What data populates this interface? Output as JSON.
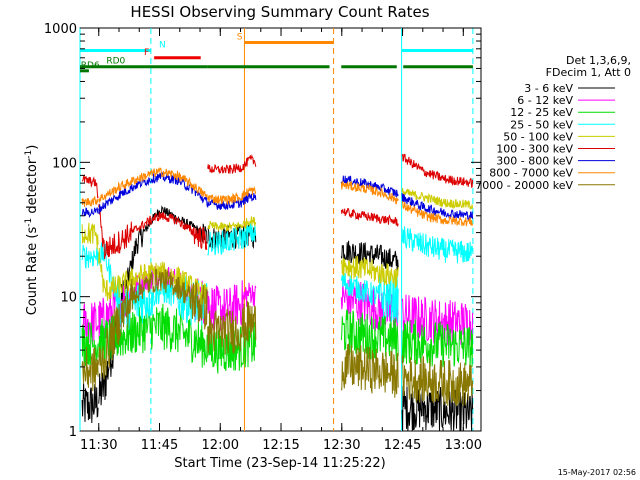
{
  "chart_data": {
    "type": "line",
    "title": "HESSI Observing Summary Count Rates",
    "xlabel": "Start Time (23-Sep-14 11:25:22)",
    "ylabel_main": "Count Rate (s",
    "ylabel_sup1": "-1",
    "ylabel_mid": " detector",
    "ylabel_sup2": "-1",
    "ylabel_end": ")",
    "yscale": "log",
    "ylim": [
      1,
      1000
    ],
    "xlim_minutes": [
      0,
      99
    ],
    "x_tick_labels": [
      "11:30",
      "11:45",
      "12:00",
      "12:15",
      "12:30",
      "12:45",
      "13:00"
    ],
    "x_tick_minutes": [
      4.63,
      19.63,
      34.63,
      49.63,
      64.63,
      79.63,
      94.63
    ],
    "y_tick_labels": [
      "1",
      "10",
      "100",
      "1000"
    ],
    "y_tick_values": [
      1,
      10,
      100,
      1000
    ],
    "legend": {
      "header": [
        "Det 1,3,6,9,",
        "FDecim 1, Att 0"
      ],
      "entries": [
        {
          "label": "3 - 6 keV",
          "color": "#000000"
        },
        {
          "label": "6 - 12 keV",
          "color": "#ff00ff"
        },
        {
          "label": "12 - 25 keV",
          "color": "#00dd00"
        },
        {
          "label": "25 - 50 keV",
          "color": "#00ffff"
        },
        {
          "label": "50 - 100 keV",
          "color": "#cccc00"
        },
        {
          "label": "100 - 300 keV",
          "color": "#dd0000"
        },
        {
          "label": "300 - 800 keV",
          "color": "#0000dd"
        },
        {
          "label": "800 - 7000 keV",
          "color": "#ff8800"
        },
        {
          "label": "7000 - 20000 keV",
          "color": "#887700"
        }
      ]
    },
    "flags": [
      {
        "label": "N",
        "color": "#00ffff",
        "y": 680,
        "segments": [
          [
            0,
            17.5
          ],
          [
            79.5,
            97
          ]
        ],
        "label_at": 19.5
      },
      {
        "label": "F",
        "color": "#ee0000",
        "y": 600,
        "segments": [
          [
            18.3,
            29.8
          ]
        ],
        "label_at": 15.8
      },
      {
        "label": "S",
        "color": "#ff8800",
        "y": 780,
        "segments": [
          [
            40.6,
            62.6
          ]
        ],
        "label_at": 38.7
      },
      {
        "label": "RD0",
        "color": "#007700",
        "y": 515,
        "segments": [
          [
            0,
            31.5
          ],
          [
            31.5,
            61.6
          ],
          [
            64.5,
            78.2
          ],
          [
            79.8,
            97
          ]
        ],
        "label_at": 6.5
      },
      {
        "label": "RD6",
        "color": "#007700",
        "y": 480,
        "segments": [
          [
            0,
            2.2
          ]
        ],
        "label_at": 0.2
      }
    ],
    "vertical_markers": [
      {
        "minute": 0,
        "color": "#00ffff",
        "style": "solid"
      },
      {
        "minute": 17.5,
        "color": "#00ffff",
        "style": "dashed"
      },
      {
        "minute": 40.6,
        "color": "#ff8800",
        "style": "solid"
      },
      {
        "minute": 62.6,
        "color": "#ff8800",
        "style": "dashed"
      },
      {
        "minute": 79.4,
        "color": "#00ffff",
        "style": "solid"
      },
      {
        "minute": 97,
        "color": "#00ffff",
        "style": "dashed"
      }
    ],
    "data_segments_minutes": [
      [
        0.5,
        4.6
      ],
      [
        4.6,
        31.5
      ],
      [
        31.5,
        43.5
      ],
      [
        64.5,
        78.7
      ],
      [
        79.5,
        97
      ]
    ],
    "series": [
      {
        "name": "3 - 6 keV",
        "color": "#000000",
        "points": [
          [
            0.5,
            1.5
          ],
          [
            4,
            1.6
          ],
          [
            6,
            2.2
          ],
          [
            10,
            8
          ],
          [
            14,
            25
          ],
          [
            18,
            38
          ],
          [
            20,
            45
          ],
          [
            24,
            38
          ],
          [
            28,
            33
          ],
          [
            31.5,
            28
          ],
          [
            31.5,
            28
          ],
          [
            34,
            27
          ],
          [
            37,
            28
          ],
          [
            40,
            28
          ],
          [
            42,
            29
          ],
          [
            43.5,
            28
          ],
          [
            64.5,
            23
          ],
          [
            66,
            22
          ],
          [
            70,
            21
          ],
          [
            74,
            20
          ],
          [
            78.7,
            18
          ],
          [
            79.5,
            1.5
          ],
          [
            85,
            1.5
          ],
          [
            90,
            1.4
          ],
          [
            97,
            1.3
          ]
        ]
      },
      {
        "name": "6 - 12 keV",
        "color": "#ff00ff",
        "points": [
          [
            0.5,
            6.2
          ],
          [
            4,
            6.4
          ],
          [
            6,
            6.8
          ],
          [
            10,
            9
          ],
          [
            14,
            12
          ],
          [
            18,
            14
          ],
          [
            20,
            15
          ],
          [
            24,
            13
          ],
          [
            28,
            10
          ],
          [
            31.5,
            9
          ],
          [
            31.5,
            9
          ],
          [
            34,
            8
          ],
          [
            37,
            8
          ],
          [
            40,
            9
          ],
          [
            42,
            11
          ],
          [
            43.5,
            10
          ],
          [
            64.5,
            10
          ],
          [
            66,
            9.5
          ],
          [
            70,
            9
          ],
          [
            74,
            8
          ],
          [
            78.7,
            7.5
          ],
          [
            79.5,
            7.2
          ],
          [
            85,
            6.8
          ],
          [
            90,
            6.5
          ],
          [
            97,
            6.3
          ]
        ]
      },
      {
        "name": "12 - 25 keV",
        "color": "#00dd00",
        "points": [
          [
            0.5,
            4.5
          ],
          [
            4,
            4.5
          ],
          [
            6,
            4.7
          ],
          [
            10,
            5
          ],
          [
            14,
            5.5
          ],
          [
            18,
            6
          ],
          [
            20,
            6
          ],
          [
            24,
            5.5
          ],
          [
            28,
            4.8
          ],
          [
            31.5,
            4.2
          ],
          [
            31.5,
            4.2
          ],
          [
            34,
            4
          ],
          [
            37,
            4
          ],
          [
            40,
            4.2
          ],
          [
            42,
            4.5
          ],
          [
            43.5,
            4.3
          ],
          [
            64.5,
            5.5
          ],
          [
            66,
            5.5
          ],
          [
            70,
            5.2
          ],
          [
            74,
            5
          ],
          [
            78.7,
            4.8
          ],
          [
            79.5,
            4.7
          ],
          [
            85,
            4.5
          ],
          [
            90,
            4.4
          ],
          [
            97,
            4.2
          ]
        ]
      },
      {
        "name": "25 - 50 keV",
        "color": "#00ffff",
        "points": [
          [
            0.5,
            20
          ],
          [
            4,
            20
          ],
          [
            6,
            21
          ],
          [
            10,
            8
          ],
          [
            14,
            9
          ],
          [
            18,
            10
          ],
          [
            20,
            11
          ],
          [
            24,
            10
          ],
          [
            28,
            9
          ],
          [
            31.5,
            8.5
          ],
          [
            31.5,
            25
          ],
          [
            34,
            25
          ],
          [
            37,
            26
          ],
          [
            40,
            27
          ],
          [
            42,
            30
          ],
          [
            43.5,
            29
          ],
          [
            64.5,
            13
          ],
          [
            66,
            12.5
          ],
          [
            70,
            11
          ],
          [
            74,
            10
          ],
          [
            78.7,
            9.5
          ],
          [
            79.5,
            28
          ],
          [
            85,
            24
          ],
          [
            90,
            22
          ],
          [
            97,
            21
          ]
        ]
      },
      {
        "name": "50 - 100 keV",
        "color": "#cccc00",
        "points": [
          [
            0.5,
            30
          ],
          [
            4,
            29
          ],
          [
            6,
            11
          ],
          [
            10,
            12
          ],
          [
            14,
            14
          ],
          [
            18,
            15
          ],
          [
            20,
            15
          ],
          [
            24,
            14
          ],
          [
            28,
            11.5
          ],
          [
            31.5,
            10
          ],
          [
            31.5,
            34
          ],
          [
            34,
            33
          ],
          [
            37,
            33
          ],
          [
            40,
            34
          ],
          [
            42,
            37
          ],
          [
            43.5,
            36
          ],
          [
            64.5,
            18
          ],
          [
            66,
            17
          ],
          [
            70,
            16
          ],
          [
            74,
            15
          ],
          [
            78.7,
            14
          ],
          [
            79.5,
            60
          ],
          [
            85,
            55
          ],
          [
            90,
            50
          ],
          [
            97,
            48
          ]
        ]
      },
      {
        "name": "100 - 300 keV",
        "color": "#dd0000",
        "points": [
          [
            0.5,
            75
          ],
          [
            4,
            70
          ],
          [
            6,
            22
          ],
          [
            10,
            26
          ],
          [
            14,
            32
          ],
          [
            18,
            38
          ],
          [
            20,
            40
          ],
          [
            24,
            37
          ],
          [
            28,
            30
          ],
          [
            31.5,
            26
          ],
          [
            31.5,
            90
          ],
          [
            34,
            88
          ],
          [
            37,
            88
          ],
          [
            40,
            92
          ],
          [
            42,
            105
          ],
          [
            43.5,
            100
          ],
          [
            64.5,
            44
          ],
          [
            66,
            42
          ],
          [
            70,
            40
          ],
          [
            74,
            38
          ],
          [
            78.7,
            36
          ],
          [
            79.5,
            110
          ],
          [
            85,
            85
          ],
          [
            90,
            75
          ],
          [
            97,
            70
          ]
        ]
      },
      {
        "name": "300 - 800 keV",
        "color": "#0000dd",
        "points": [
          [
            0.5,
            42
          ],
          [
            4,
            43
          ],
          [
            6,
            48
          ],
          [
            10,
            58
          ],
          [
            14,
            68
          ],
          [
            18,
            76
          ],
          [
            20,
            78
          ],
          [
            24,
            74
          ],
          [
            28,
            62
          ],
          [
            31.5,
            50
          ],
          [
            31.5,
            50
          ],
          [
            34,
            48
          ],
          [
            37,
            48
          ],
          [
            40,
            50
          ],
          [
            42,
            56
          ],
          [
            43.5,
            54
          ],
          [
            64.5,
            75
          ],
          [
            66,
            74
          ],
          [
            70,
            70
          ],
          [
            74,
            65
          ],
          [
            78.7,
            58
          ],
          [
            79.5,
            55
          ],
          [
            85,
            46
          ],
          [
            90,
            42
          ],
          [
            97,
            40
          ]
        ]
      },
      {
        "name": "800 - 7000 keV",
        "color": "#ff8800",
        "points": [
          [
            0.5,
            50
          ],
          [
            4,
            52
          ],
          [
            6,
            56
          ],
          [
            10,
            66
          ],
          [
            14,
            75
          ],
          [
            18,
            83
          ],
          [
            20,
            85
          ],
          [
            24,
            80
          ],
          [
            28,
            67
          ],
          [
            31.5,
            55
          ],
          [
            31.5,
            55
          ],
          [
            34,
            53
          ],
          [
            37,
            53
          ],
          [
            40,
            56
          ],
          [
            42,
            62
          ],
          [
            43.5,
            60
          ],
          [
            64.5,
            68
          ],
          [
            66,
            67
          ],
          [
            70,
            64
          ],
          [
            74,
            60
          ],
          [
            78.7,
            52
          ],
          [
            79.5,
            48
          ],
          [
            85,
            40
          ],
          [
            90,
            37
          ],
          [
            97,
            36
          ]
        ]
      },
      {
        "name": "7000 - 20000 keV",
        "color": "#887700",
        "points": [
          [
            0.5,
            2.8
          ],
          [
            4,
            2.9
          ],
          [
            6,
            3.5
          ],
          [
            10,
            7
          ],
          [
            14,
            11
          ],
          [
            18,
            13
          ],
          [
            20,
            13.5
          ],
          [
            24,
            12
          ],
          [
            28,
            9.5
          ],
          [
            31.5,
            8
          ],
          [
            31.5,
            5.5
          ],
          [
            34,
            5.5
          ],
          [
            37,
            5.5
          ],
          [
            40,
            5.8
          ],
          [
            42,
            6.5
          ],
          [
            43.5,
            6.2
          ],
          [
            64.5,
            3
          ],
          [
            66,
            3
          ],
          [
            70,
            2.9
          ],
          [
            74,
            2.8
          ],
          [
            78.7,
            2.6
          ],
          [
            79.5,
            2.5
          ],
          [
            85,
            2.4
          ],
          [
            90,
            2.3
          ],
          [
            97,
            2.2
          ]
        ]
      }
    ]
  },
  "footer": {
    "timestamp": "15-May-2017 02:56"
  }
}
